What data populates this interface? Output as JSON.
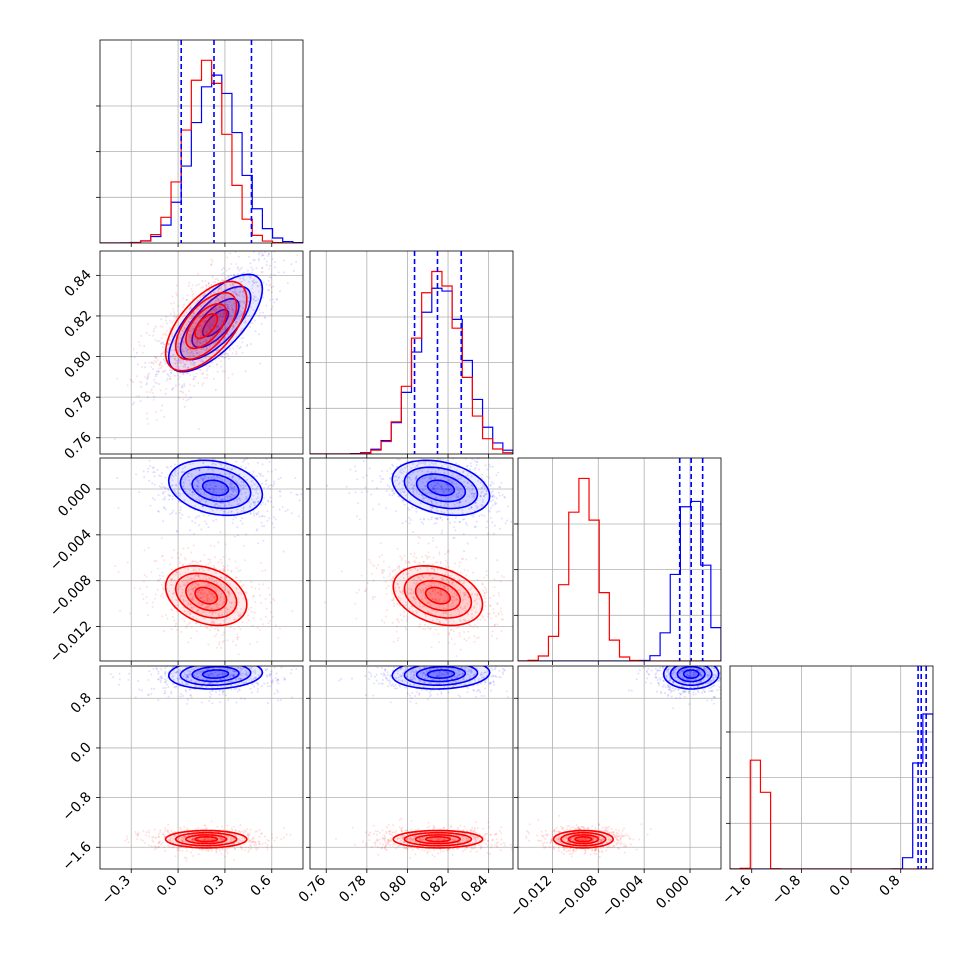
{
  "chart_data": {
    "type": "corner",
    "title": "",
    "colors": {
      "series_a": "#0000ff",
      "series_b": "#ff0000",
      "grid": "#b0b0b0",
      "axis": "#000000"
    },
    "series": [
      {
        "color": "#0000ff",
        "means": [
          0.24,
          0.8165,
          0.0001,
          1.19
        ],
        "stds": [
          0.15,
          0.012,
          0.0012,
          0.12
        ],
        "hist_quantiles": {
          "p16": [
            0.02,
            0.8035,
            -0.0009,
            1.08
          ],
          "p50": [
            0.23,
            0.8148,
            0.0001,
            1.13
          ],
          "p84": [
            0.47,
            0.8265,
            0.0011,
            1.21
          ]
        }
      },
      {
        "color": "#ff0000",
        "means": [
          0.18,
          0.815,
          -0.0093,
          -1.47
        ],
        "stds": [
          0.13,
          0.011,
          0.0013,
          0.07
        ]
      }
    ],
    "params": [
      {
        "range": [
          -0.5,
          0.8
        ],
        "ticks": [
          "−0.3",
          "0.0",
          "0.3",
          "0.6"
        ],
        "tick_values": [
          -0.3,
          0.0,
          0.3,
          0.6
        ]
      },
      {
        "range": [
          0.752,
          0.852
        ],
        "ticks": [
          "0.76",
          "0.78",
          "0.80",
          "0.82",
          "0.84"
        ],
        "tick_values": [
          0.76,
          0.78,
          0.8,
          0.82,
          0.84
        ]
      },
      {
        "range": [
          -0.015,
          0.0027
        ],
        "ticks": [
          "−0.012",
          "−0.008",
          "−0.004",
          "0.000"
        ],
        "tick_values": [
          -0.012,
          -0.008,
          -0.004,
          0.0
        ]
      },
      {
        "range": [
          -1.95,
          1.32
        ],
        "ticks": [
          "−1.6",
          "−0.8",
          "0.0",
          "0.8"
        ],
        "tick_values": [
          -1.6,
          -0.8,
          0.0,
          0.8
        ]
      }
    ],
    "correlations": {
      "0-1": [
        0.7,
        0.6
      ],
      "0-2": [
        -0.25,
        -0.3
      ],
      "1-2": [
        -0.3,
        -0.3
      ],
      "0-3": [
        0.1,
        0.0
      ],
      "1-3": [
        0.1,
        0.0
      ],
      "2-3": [
        0.0,
        0.0
      ]
    },
    "grid": true,
    "quantile_lines": "dashed",
    "legend": "none"
  }
}
